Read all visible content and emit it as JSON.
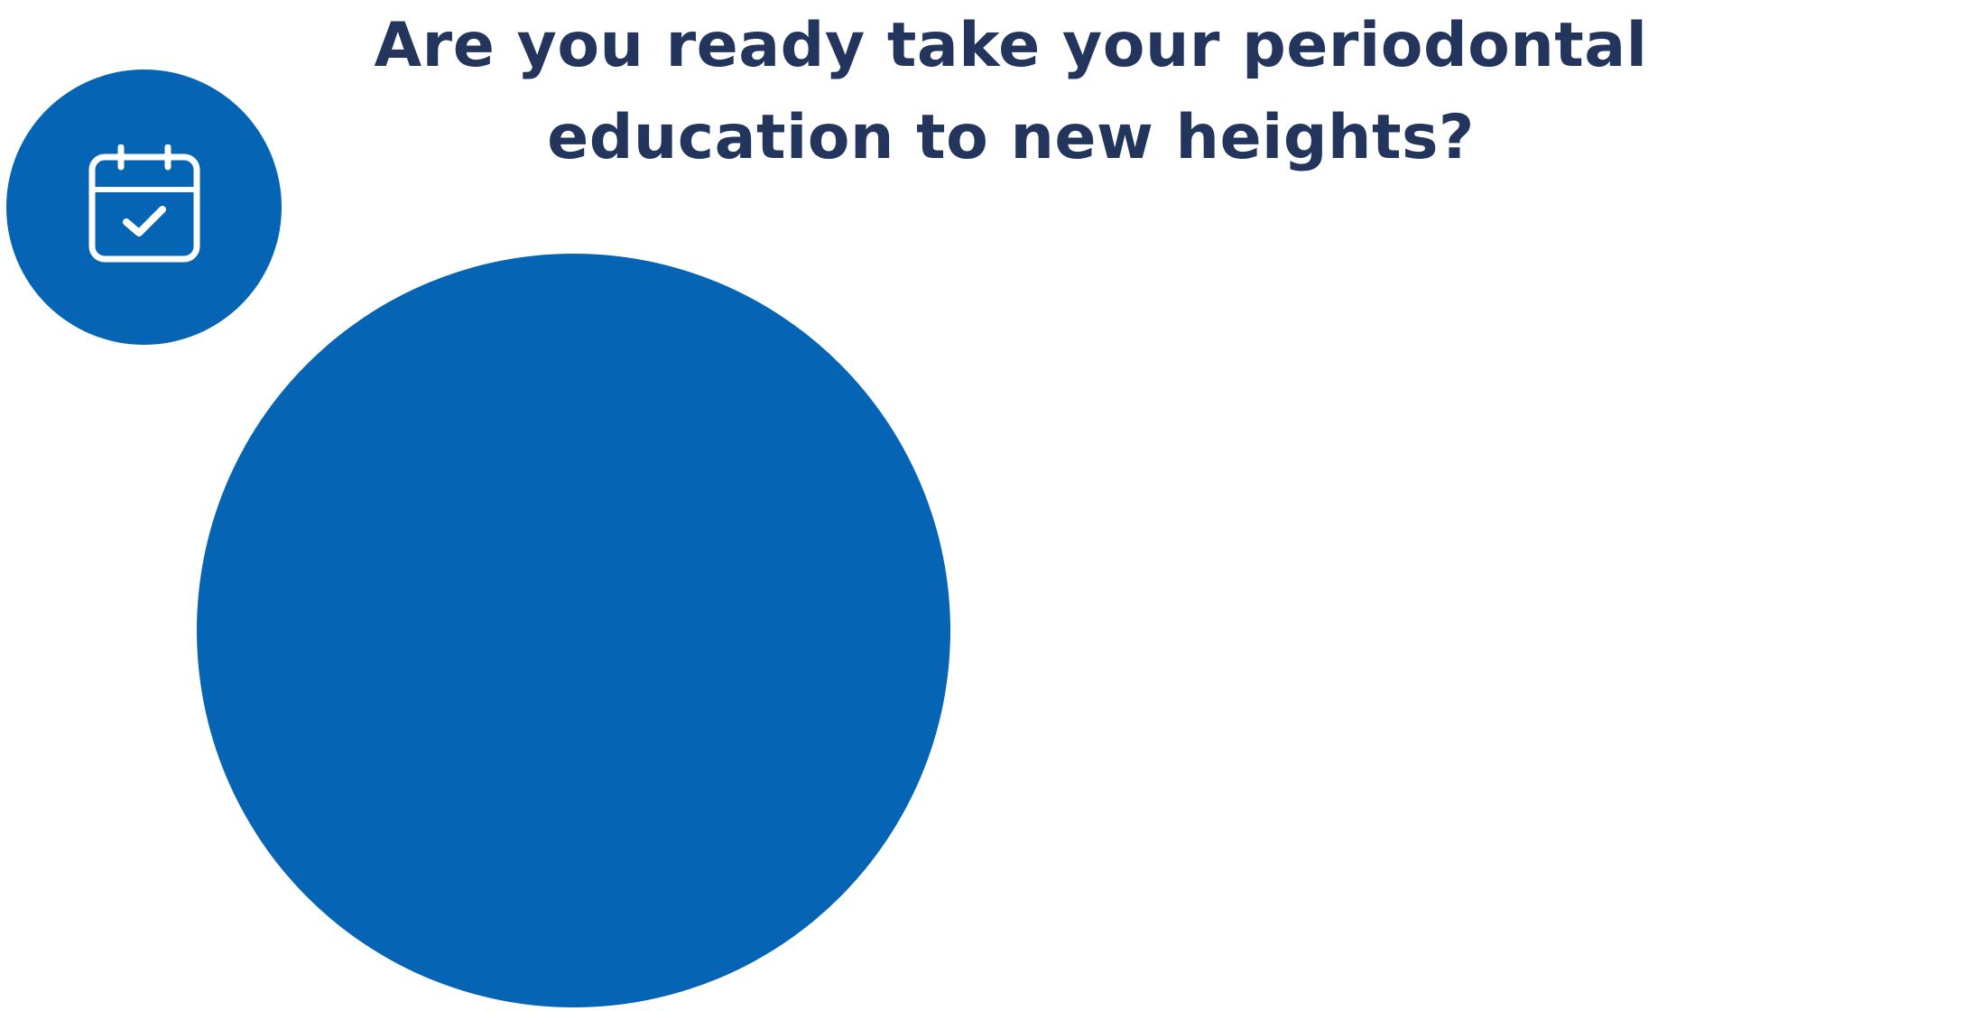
{
  "hero": {
    "title_line_1": "Are you ready take your periodontal",
    "title_line_2": "education to new heights?",
    "icon": "calendar-check-icon"
  },
  "colors": {
    "title": "#23355c",
    "brand_blue": "#0565b4",
    "icon_stroke": "#ffffff",
    "background": "#ffffff"
  }
}
